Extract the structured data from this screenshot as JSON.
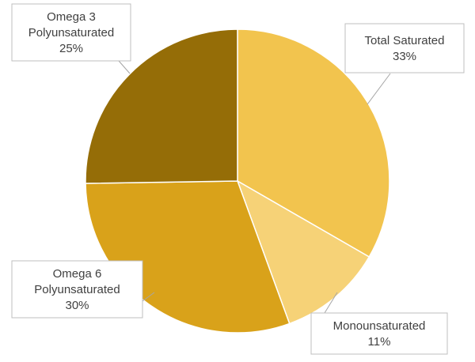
{
  "chart_data": {
    "type": "pie",
    "title": "",
    "slices": [
      {
        "category": "Total Saturated",
        "value": 33,
        "value_label": "33%",
        "color": "#F2C44E"
      },
      {
        "category": "Monounsaturated",
        "value": 11,
        "value_label": "11%",
        "color": "#F6D277"
      },
      {
        "category": "Omega 6 Polyunsaturated",
        "value": 30,
        "value_label": "30%",
        "color": "#D9A21A"
      },
      {
        "category": "Omega 3 Polyunsaturated",
        "value": 25,
        "value_label": "25%",
        "color": "#956D07"
      }
    ],
    "start_angle": "12 o'clock",
    "direction": "clockwise",
    "legend": "none"
  }
}
